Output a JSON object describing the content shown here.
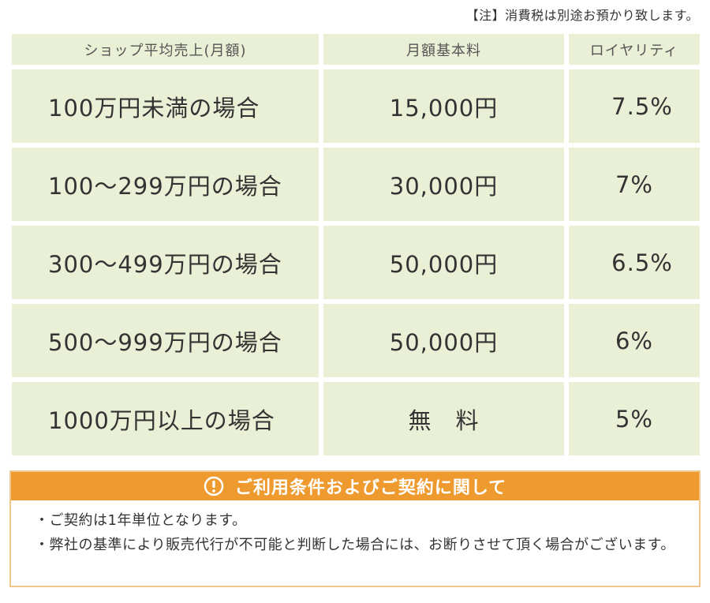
{
  "note": "【注】消費税は別途お預かり致します。",
  "table": {
    "headers": [
      "ショップ平均売上(月額)",
      "月額基本料",
      "ロイヤリティ"
    ],
    "rows": [
      {
        "sales": "100万円未満の場合",
        "fee": "15,000円",
        "royalty": "7.5%"
      },
      {
        "sales": "100〜299万円の場合",
        "fee": "30,000円",
        "royalty": "7%"
      },
      {
        "sales": "300〜499万円の場合",
        "fee": "50,000円",
        "royalty": "6.5%"
      },
      {
        "sales": "500〜999万円の場合",
        "fee": "50,000円",
        "royalty": "6%"
      },
      {
        "sales": "1000万円以上の場合",
        "fee": "無　料",
        "royalty": "5%"
      }
    ]
  },
  "conditions": {
    "title": "ご利用条件およびご契約に関して",
    "icon": "exclamation-circle-icon",
    "lines": [
      "・ご契約は1年単位となります。",
      "・弊社の基準により販売代行が不可能と判断した場合には、お断りさせて頂く場合がございます。"
    ]
  },
  "colors": {
    "cell_bg": "#e9f0d6",
    "header_orange": "#ee9a2f",
    "border_orange": "#f0c68d"
  }
}
